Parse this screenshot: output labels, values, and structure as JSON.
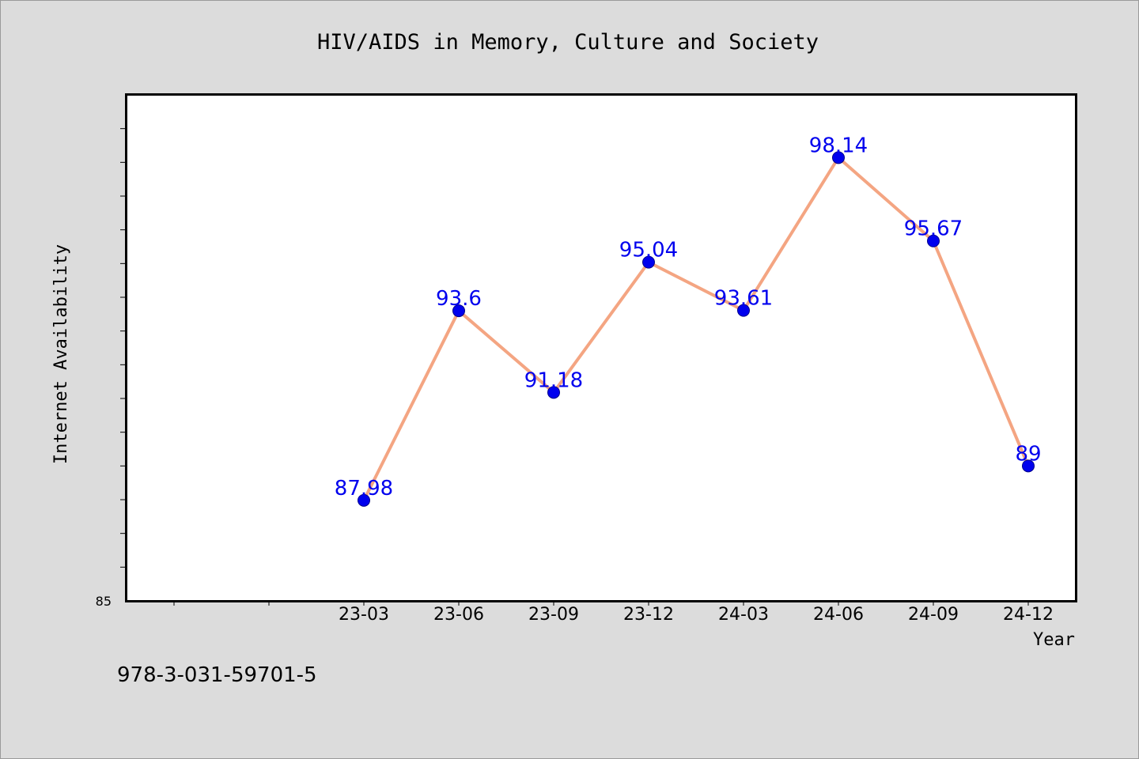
{
  "chart_data": {
    "type": "line",
    "title": "HIV/AIDS in Memory, Culture and Society",
    "xlabel": "Year",
    "ylabel": "Internet Availability",
    "categories": [
      "23-03",
      "23-06",
      "23-09",
      "23-12",
      "24-03",
      "24-06",
      "24-09",
      "24-12"
    ],
    "series": [
      {
        "values": [
          87.98,
          93.6,
          91.18,
          95.04,
          93.61,
          98.14,
          95.67,
          89
        ]
      }
    ],
    "data_labels": [
      "87.98",
      "93.6",
      "91.18",
      "95.04",
      "93.61",
      "98.14",
      "95.67",
      "89"
    ],
    "ylim": [
      85,
      100
    ],
    "y_tick_labels": [
      "85"
    ],
    "grid": false,
    "line_color": "#f4a582",
    "marker_color": "#0000ee",
    "label_color": "#0000ee",
    "footnote": "978-3-031-59701-5"
  }
}
